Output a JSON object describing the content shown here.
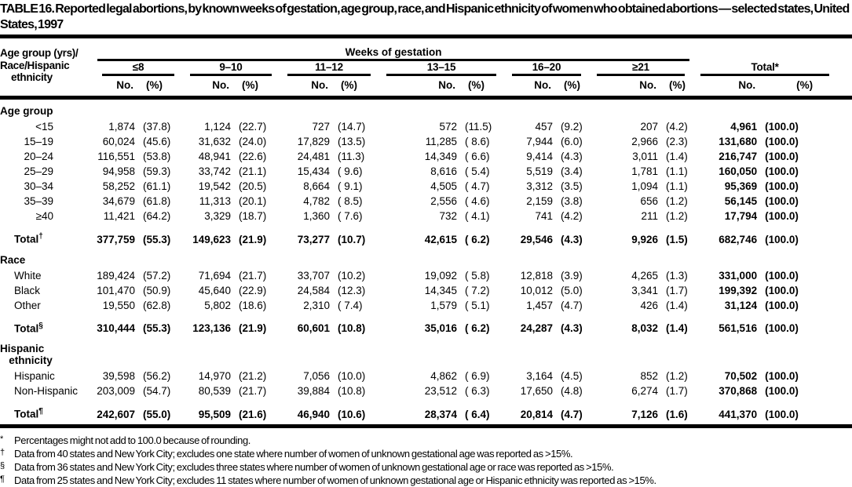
{
  "title": "TABLE 16. Reported legal abortions, by known weeks of gestation, age group, race, and Hispanic ethnicity of women who obtained abortions — selected states, United States, 1997",
  "header": {
    "row_label_lines": [
      "Age group (yrs)/",
      "Race/Hispanic",
      "ethnicity"
    ],
    "spanner": "Weeks of gestation",
    "groups": [
      "≤8",
      "9–10",
      "11–12",
      "13–15",
      "16–20",
      "≥21"
    ],
    "total_label": "Total*",
    "no_label": "No.",
    "pct_label": "(%)"
  },
  "sections": [
    {
      "id": "age-group",
      "name": "Age group",
      "label_style": "age",
      "rows": [
        {
          "label": "<15",
          "cells": [
            "1,874",
            "(37.8)",
            "1,124",
            "(22.7)",
            "727",
            "(14.7)",
            "572",
            "(11.5)",
            "457",
            "(9.2)",
            "207",
            "(4.2)",
            "4,961",
            "(100.0)"
          ]
        },
        {
          "label": "15–19",
          "cells": [
            "60,024",
            "(45.6)",
            "31,632",
            "(24.0)",
            "17,829",
            "(13.5)",
            "11,285",
            "( 8.6)",
            "7,944",
            "(6.0)",
            "2,966",
            "(2.3)",
            "131,680",
            "(100.0)"
          ]
        },
        {
          "label": "20–24",
          "cells": [
            "116,551",
            "(53.8)",
            "48,941",
            "(22.6)",
            "24,481",
            "(11.3)",
            "14,349",
            "( 6.6)",
            "9,414",
            "(4.3)",
            "3,011",
            "(1.4)",
            "216,747",
            "(100.0)"
          ]
        },
        {
          "label": "25–29",
          "cells": [
            "94,958",
            "(59.3)",
            "33,742",
            "(21.1)",
            "15,434",
            "( 9.6)",
            "8,616",
            "( 5.4)",
            "5,519",
            "(3.4)",
            "1,781",
            "(1.1)",
            "160,050",
            "(100.0)"
          ]
        },
        {
          "label": "30–34",
          "cells": [
            "58,252",
            "(61.1)",
            "19,542",
            "(20.5)",
            "8,664",
            "( 9.1)",
            "4,505",
            "( 4.7)",
            "3,312",
            "(3.5)",
            "1,094",
            "(1.1)",
            "95,369",
            "(100.0)"
          ]
        },
        {
          "label": "35–39",
          "cells": [
            "34,679",
            "(61.8)",
            "11,313",
            "(20.1)",
            "4,782",
            "( 8.5)",
            "2,556",
            "( 4.6)",
            "2,159",
            "(3.8)",
            "656",
            "(1.2)",
            "56,145",
            "(100.0)"
          ]
        },
        {
          "label": "≥40",
          "cells": [
            "11,421",
            "(64.2)",
            "3,329",
            "(18.7)",
            "1,360",
            "( 7.6)",
            "732",
            "( 4.1)",
            "741",
            "(4.2)",
            "211",
            "(1.2)",
            "17,794",
            "(100.0)"
          ]
        }
      ],
      "total": {
        "label": "Total",
        "sup": "†",
        "cells": [
          "377,759",
          "(55.3)",
          "149,623",
          "(21.9)",
          "73,277",
          "(10.7)",
          "42,615",
          "( 6.2)",
          "29,546",
          "(4.3)",
          "9,926",
          "(1.5)",
          "682,746",
          "(100.0)"
        ]
      }
    },
    {
      "id": "race",
      "name": "Race",
      "label_style": "item",
      "rows": [
        {
          "label": "White",
          "cells": [
            "189,424",
            "(57.2)",
            "71,694",
            "(21.7)",
            "33,707",
            "(10.2)",
            "19,092",
            "( 5.8)",
            "12,818",
            "(3.9)",
            "4,265",
            "(1.3)",
            "331,000",
            "(100.0)"
          ]
        },
        {
          "label": "Black",
          "cells": [
            "101,470",
            "(50.9)",
            "45,640",
            "(22.9)",
            "24,584",
            "(12.3)",
            "14,345",
            "( 7.2)",
            "10,012",
            "(5.0)",
            "3,341",
            "(1.7)",
            "199,392",
            "(100.0)"
          ]
        },
        {
          "label": "Other",
          "cells": [
            "19,550",
            "(62.8)",
            "5,802",
            "(18.6)",
            "2,310",
            "( 7.4)",
            "1,579",
            "( 5.1)",
            "1,457",
            "(4.7)",
            "426",
            "(1.4)",
            "31,124",
            "(100.0)"
          ]
        }
      ],
      "total": {
        "label": "Total",
        "sup": "§",
        "cells": [
          "310,444",
          "(55.3)",
          "123,136",
          "(21.9)",
          "60,601",
          "(10.8)",
          "35,016",
          "( 6.2)",
          "24,287",
          "(4.3)",
          "8,032",
          "(1.4)",
          "561,516",
          "(100.0)"
        ]
      }
    },
    {
      "id": "hispanic-ethnicity",
      "name": "Hispanic\n   ethnicity",
      "label_style": "item",
      "rows": [
        {
          "label": "Hispanic",
          "cells": [
            "39,598",
            "(56.2)",
            "14,970",
            "(21.2)",
            "7,056",
            "(10.0)",
            "4,862",
            "( 6.9)",
            "3,164",
            "(4.5)",
            "852",
            "(1.2)",
            "70,502",
            "(100.0)"
          ]
        },
        {
          "label": "Non-Hispanic",
          "cells": [
            "203,009",
            "(54.7)",
            "80,539",
            "(21.7)",
            "39,884",
            "(10.8)",
            "23,512",
            "( 6.3)",
            "17,650",
            "(4.8)",
            "6,274",
            "(1.7)",
            "370,868",
            "(100.0)"
          ]
        }
      ],
      "total": {
        "label": "Total",
        "sup": "¶",
        "cells": [
          "242,607",
          "(55.0)",
          "95,509",
          "(21.6)",
          "46,940",
          "(10.6)",
          "28,374",
          "( 6.4)",
          "20,814",
          "(4.7)",
          "7,126",
          "(1.6)",
          "441,370",
          "(100.0)"
        ]
      }
    }
  ],
  "footnotes": [
    {
      "symbol": "*",
      "text": "Percentages might not add to 100.0 because of rounding."
    },
    {
      "symbol": "†",
      "text": "Data from 40 states and New York City; excludes one state where number of women of unknown gestational age was reported as >15%."
    },
    {
      "symbol": "§",
      "text": "Data from 36 states and New York City; excludes three states where number of women of unknown gestational age or race was reported as >15%."
    },
    {
      "symbol": "¶",
      "text": "Data from 25 states and New York City; excludes 11 states where number of women of unknown gestational age or Hispanic ethnicity was reported as >15%."
    }
  ]
}
